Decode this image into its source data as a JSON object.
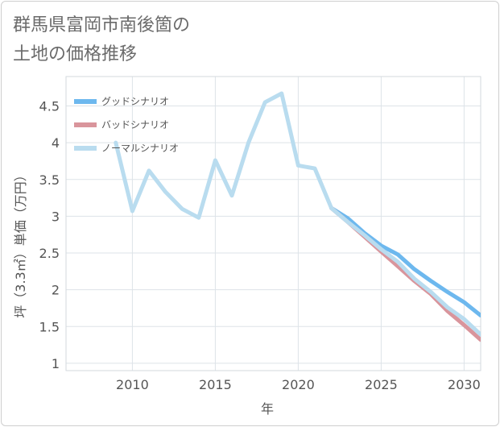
{
  "title": {
    "line1": "群馬県富岡市南後箇の",
    "line2": "土地の価格推移"
  },
  "chart_data": {
    "type": "line",
    "title": "群馬県富岡市南後箇の土地の価格推移",
    "xlabel": "年",
    "ylabel": "坪（3.3㎡）単価（万円）",
    "xlim": [
      2006,
      2031
    ],
    "ylim": [
      0.9,
      4.9
    ],
    "x_ticks": [
      2010,
      2015,
      2020,
      2025,
      2030
    ],
    "y_ticks": [
      1,
      1.5,
      2,
      2.5,
      3,
      3.5,
      4,
      4.5
    ],
    "x_tick_labels": [
      "2010",
      "2015",
      "2020",
      "2025",
      "2030"
    ],
    "y_tick_labels": [
      "1",
      "1.5",
      "2",
      "2.5",
      "3",
      "3.5",
      "4",
      "4.5"
    ],
    "legend_position": "top-left",
    "grid": true,
    "series": [
      {
        "name": "グッドシナリオ",
        "color": "#6db8ee",
        "x": [
          2022,
          2023,
          2024,
          2025,
          2026,
          2027,
          2028,
          2029,
          2030,
          2031
        ],
        "values": [
          3.11,
          2.97,
          2.77,
          2.6,
          2.48,
          2.28,
          2.12,
          1.97,
          1.83,
          1.65
        ]
      },
      {
        "name": "バッドシナリオ",
        "color": "#d9959c",
        "x": [
          2022,
          2023,
          2024,
          2025,
          2026,
          2027,
          2028,
          2029,
          2030,
          2031
        ],
        "values": [
          3.11,
          2.92,
          2.72,
          2.52,
          2.32,
          2.12,
          1.94,
          1.71,
          1.52,
          1.32
        ]
      },
      {
        "name": "ノーマルシナリオ",
        "color": "#b9dcef",
        "x": [
          2009,
          2010,
          2011,
          2012,
          2013,
          2014,
          2015,
          2016,
          2017,
          2018,
          2019,
          2020,
          2021,
          2022,
          2023,
          2024,
          2025,
          2026,
          2027,
          2028,
          2029,
          2030,
          2031
        ],
        "values": [
          4.0,
          3.07,
          3.62,
          3.33,
          3.1,
          2.98,
          3.76,
          3.28,
          4.0,
          4.55,
          4.67,
          3.69,
          3.65,
          3.11,
          2.92,
          2.74,
          2.55,
          2.38,
          2.15,
          1.97,
          1.76,
          1.6,
          1.39
        ]
      }
    ]
  }
}
